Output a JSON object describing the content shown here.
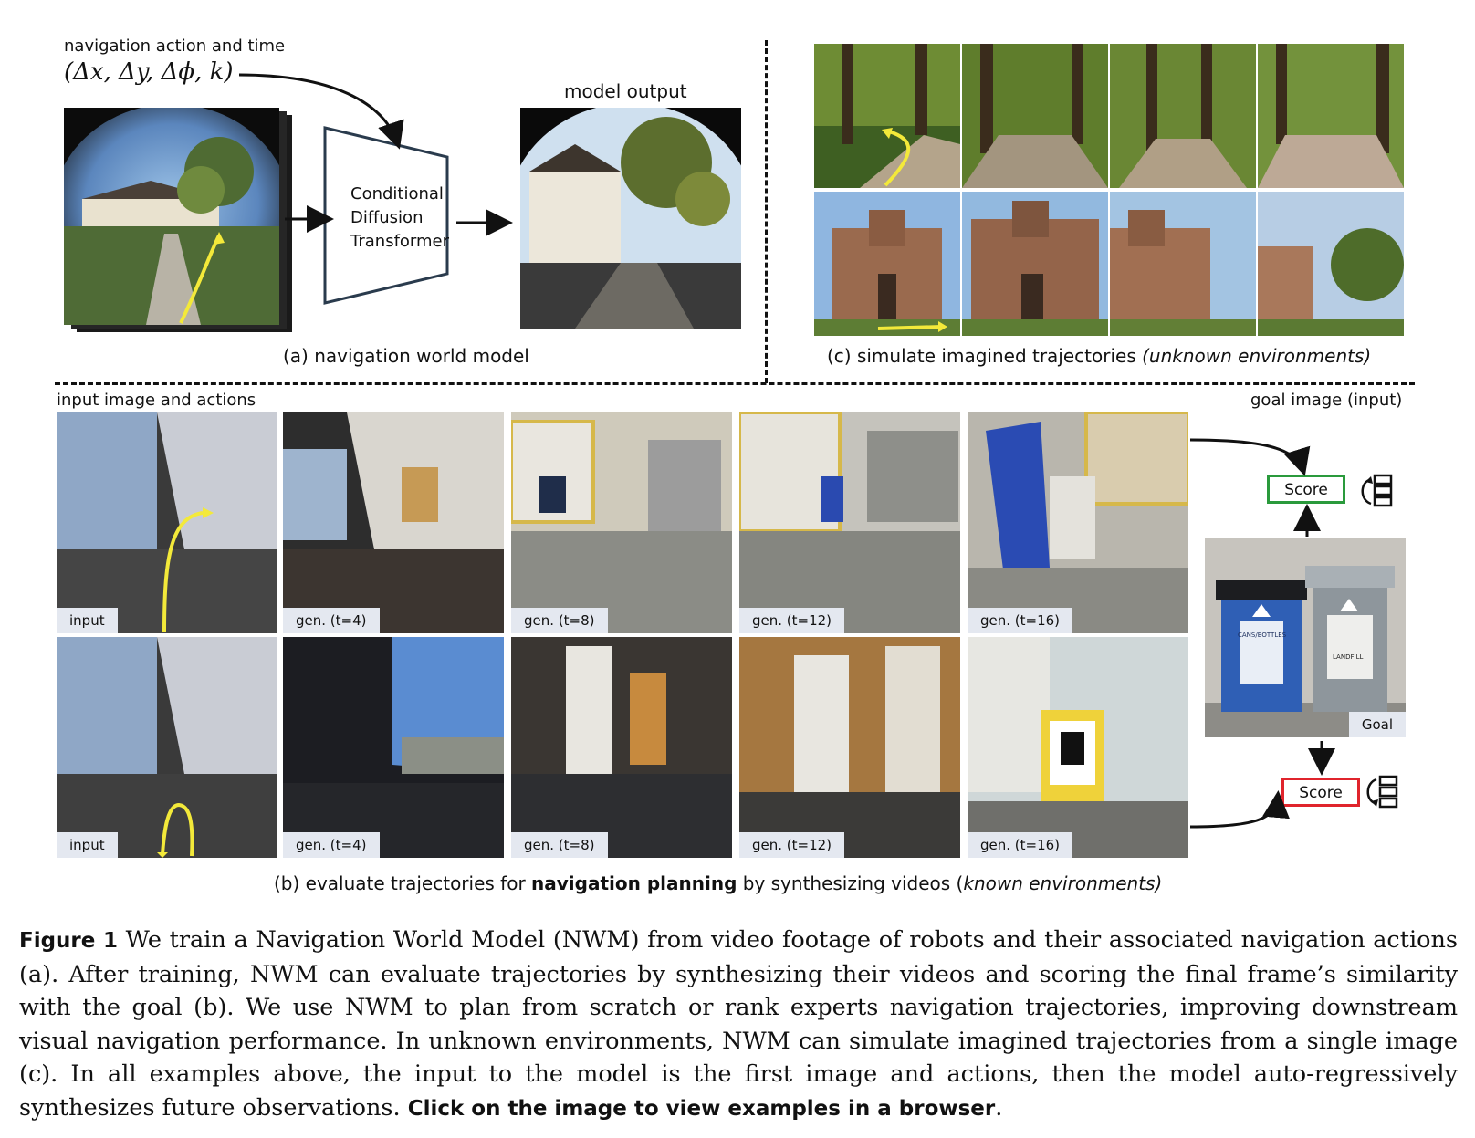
{
  "panel_a": {
    "action_label": "navigation action and time",
    "action_formula": "(Δx, Δy, Δϕ, k)",
    "model_box": [
      "Conditional",
      "Diffusion",
      "Transformer"
    ],
    "output_label": "model output",
    "caption": "(a) navigation world model"
  },
  "panel_c": {
    "caption_prefix": "(c) simulate imagined trajectories ",
    "caption_italic": "(unknown environments)"
  },
  "panel_b": {
    "input_header": "input image and actions",
    "goal_header": "goal image (input)",
    "row1_tags": [
      "input",
      "gen. (t=4)",
      "gen. (t=8)",
      "gen. (t=12)",
      "gen. (t=16)"
    ],
    "row2_tags": [
      "input",
      "gen. (t=4)",
      "gen. (t=8)",
      "gen. (t=12)",
      "gen. (t=16)"
    ],
    "goal_tag": "Goal",
    "score_good": "Score",
    "score_bad": "Score",
    "bin_left_label": "CANS/BOTTLES",
    "bin_right_label": "LANDFILL",
    "caption_a": "(b) evaluate trajectories  for ",
    "caption_bold": "navigation planning",
    "caption_b": " by synthesizing videos (",
    "caption_italic": "known environments)",
    "colors": {
      "good": "#2a9a3c",
      "bad": "#e0242c",
      "arrow": "#f3e93a"
    }
  },
  "figure_caption": {
    "label": "Figure 1",
    "text": " We train a Navigation World Model (NWM) from video footage of robots and their associated navigation actions (a). After training, NWM can evaluate trajectories by synthesizing their videos and scoring the final frame’s similarity with the goal (b). We use NWM to plan from scratch or rank experts navigation trajectories, improving downstream visual navigation performance. In unknown environments, NWM can simulate imagined trajectories from a single image (c). In all examples above, the input to the model is the first image and actions, then the model auto-regressively synthesizes future observations. ",
    "link_text": "Click on the image to view examples in a browser",
    "end": "."
  }
}
